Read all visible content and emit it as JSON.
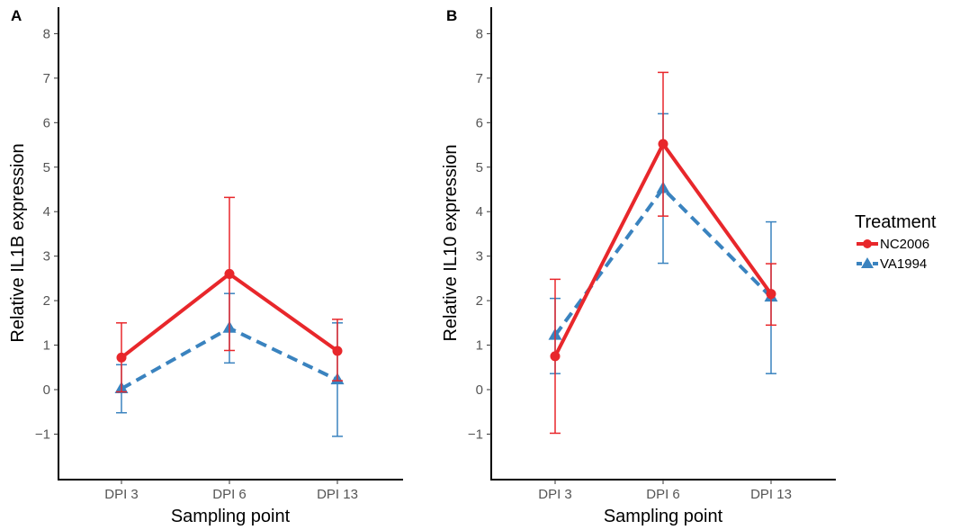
{
  "chart_data": [
    {
      "panel": "A",
      "type": "line",
      "title": "",
      "xlabel": "Sampling point",
      "ylabel": "Relative IL1B expression",
      "categories": [
        "DPI 3",
        "DPI 6",
        "DPI 13"
      ],
      "yticks": [
        -1,
        0,
        1,
        2,
        3,
        4,
        5,
        6,
        7,
        8
      ],
      "ylim": [
        -1.95,
        8.5
      ],
      "grid": false,
      "series": [
        {
          "name": "NC2006",
          "values": [
            0.72,
            2.6,
            0.87
          ],
          "err_low": [
            -0.05,
            0.88,
            0.2
          ],
          "err_high": [
            1.5,
            4.32,
            1.58
          ]
        },
        {
          "name": "VA1994",
          "values": [
            0.02,
            1.38,
            0.22
          ],
          "err_low": [
            -0.52,
            0.6,
            -1.05
          ],
          "err_high": [
            0.56,
            2.16,
            1.5
          ]
        }
      ]
    },
    {
      "panel": "B",
      "type": "line",
      "title": "",
      "xlabel": "Sampling point",
      "ylabel": "Relative IL10 expression",
      "categories": [
        "DPI 3",
        "DPI 6",
        "DPI 13"
      ],
      "yticks": [
        -1,
        0,
        1,
        2,
        3,
        4,
        5,
        6,
        7,
        8
      ],
      "ylim": [
        -1.95,
        8.5
      ],
      "grid": false,
      "series": [
        {
          "name": "NC2006",
          "values": [
            0.75,
            5.52,
            2.15
          ],
          "err_low": [
            -0.98,
            3.9,
            1.45
          ],
          "err_high": [
            2.48,
            7.13,
            2.83
          ]
        },
        {
          "name": "VA1994",
          "values": [
            1.22,
            4.52,
            2.08
          ],
          "err_low": [
            0.36,
            2.84,
            0.36
          ],
          "err_high": [
            2.05,
            6.2,
            3.77
          ]
        }
      ]
    }
  ],
  "legend": {
    "title": "Treatment",
    "placement": "right",
    "items": [
      {
        "label": "NC2006",
        "color": "#e8272b",
        "marker": "circle",
        "line": "solid"
      },
      {
        "label": "VA1994",
        "color": "#3a83bf",
        "marker": "triangle",
        "line": "dashed"
      }
    ]
  },
  "colors": {
    "NC2006": "#e8272b",
    "VA1994": "#3a83bf"
  }
}
